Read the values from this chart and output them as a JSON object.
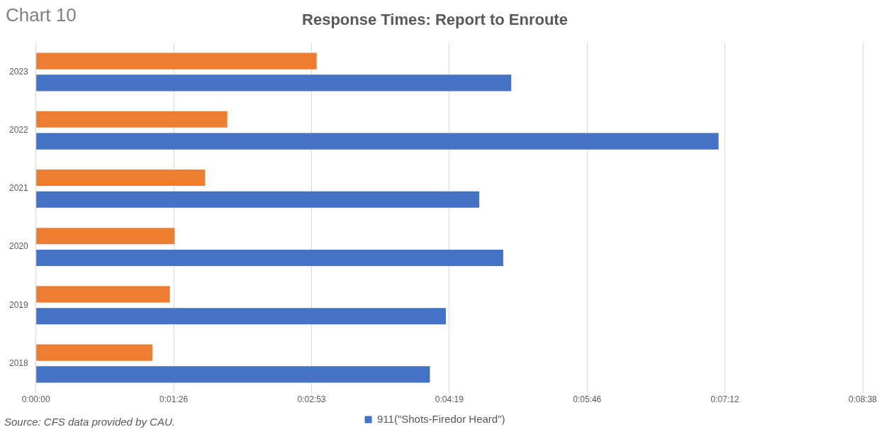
{
  "chart_data": {
    "type": "bar",
    "orientation": "horizontal",
    "title": "Response Times: Report to Enroute",
    "categories": [
      "2023",
      "2022",
      "2021",
      "2020",
      "2019",
      "2018"
    ],
    "series": [
      {
        "color": "#ed7d31",
        "values": [
          176,
          120,
          106,
          87,
          84,
          73
        ]
      },
      {
        "name": "911(\"Shots-Firedor Heard\")",
        "color": "#4472c4",
        "values": [
          298,
          428,
          278,
          293,
          257,
          247
        ]
      }
    ],
    "xlim": [
      0,
      518.4
    ],
    "xticks": [
      {
        "value": 0,
        "label": "0:00:00"
      },
      {
        "value": 86.4,
        "label": "0:01:26"
      },
      {
        "value": 172.8,
        "label": "0:02:53"
      },
      {
        "value": 259.2,
        "label": "0:04:19"
      },
      {
        "value": 345.6,
        "label": "0:05:46"
      },
      {
        "value": 432,
        "label": "0:07:12"
      },
      {
        "value": 518.4,
        "label": "0:08:38"
      }
    ],
    "grid": "x",
    "legend": "bottom",
    "annotations": [
      "Chart 10",
      "Source: CFS data provided by CAU."
    ]
  }
}
